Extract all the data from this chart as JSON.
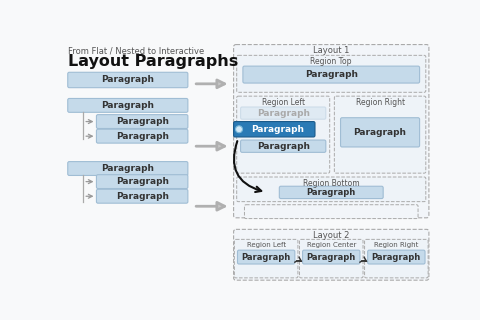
{
  "title_sub": "From Flat / Nested to Interactive",
  "title_main": "Layout Paragraphs",
  "bg_color": "#f8f9fa",
  "para_box_color": "#c5daea",
  "para_box_border": "#a0bdd4",
  "selected_box_color": "#2a7ab5",
  "selected_text_color": "#ffffff",
  "region_bg": "#eef3f8",
  "region_border": "#aaaaaa",
  "layout1_label": "Layout 1",
  "layout2_label": "Layout 2",
  "region_top_label": "Region Top",
  "region_left_label": "Region Left",
  "region_right_label": "Region Right",
  "region_bottom_label": "Region Bottom",
  "region_center_label": "Region Center",
  "paragraph_label": "Paragraph"
}
